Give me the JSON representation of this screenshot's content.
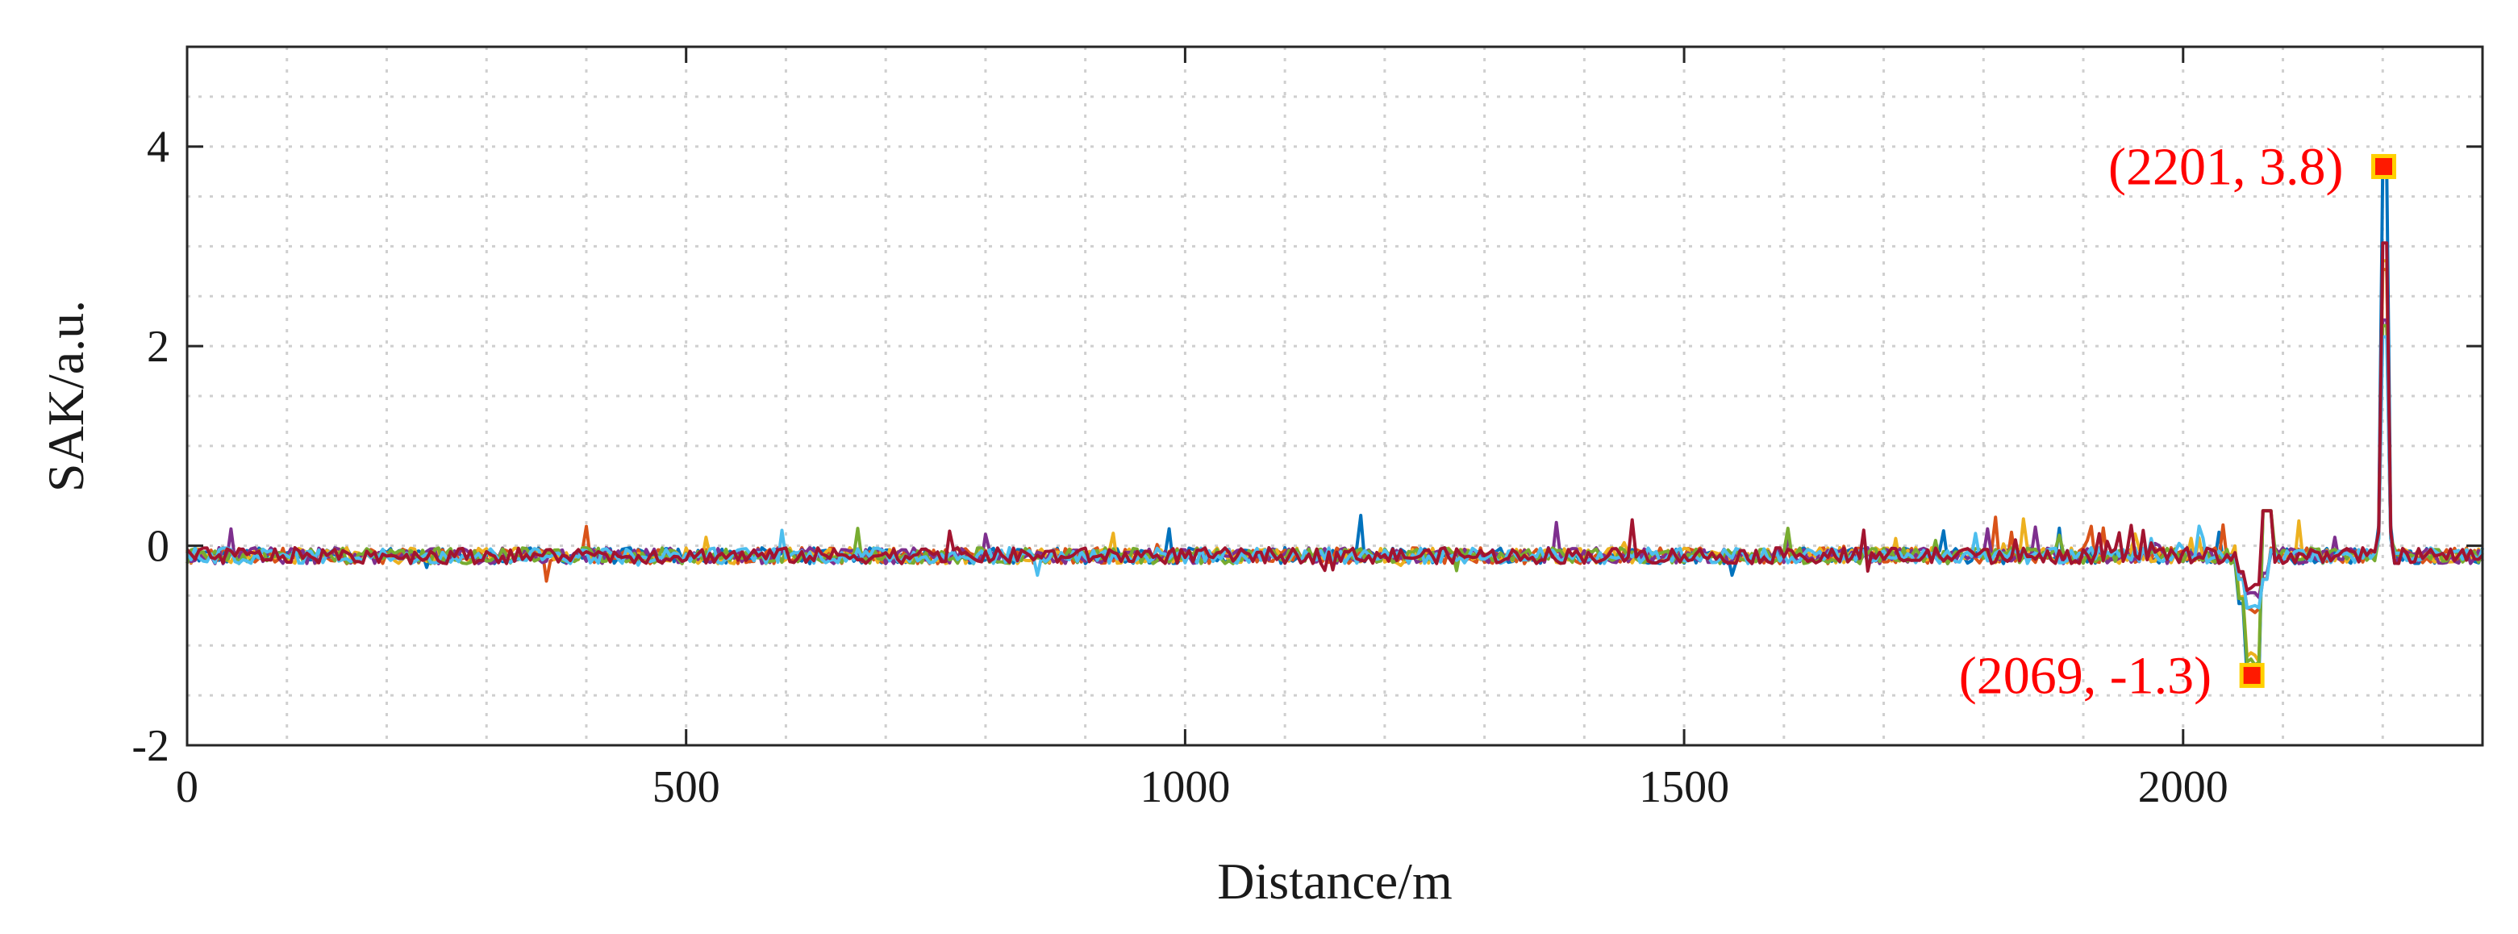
{
  "chart_data": {
    "type": "line",
    "title": "",
    "xlabel": "Distance/m",
    "ylabel": "SAK/a.u.",
    "xlim": [
      0,
      2300
    ],
    "ylim": [
      -2,
      5
    ],
    "xticks": [
      0,
      500,
      1000,
      1500,
      2000
    ],
    "yticks": [
      -2,
      0,
      2,
      4
    ],
    "grid": true,
    "series_colors": [
      "#0072bd",
      "#d95319",
      "#edb120",
      "#7e2f8e",
      "#77ac30",
      "#4dbeee",
      "#a2142f"
    ],
    "series_description_values": {
      "baseline": -0.1,
      "noise_amplitude": 0.08,
      "dip_position": 2069,
      "dip_value": -1.3,
      "peak_position": 2201,
      "peak_value": 3.8
    },
    "annotations": [
      {
        "x": 2201,
        "y": 3.8,
        "label": "(2201, 3.8)",
        "label_side": "left"
      },
      {
        "x": 2069,
        "y": -1.3,
        "label": "(2069, -1.3)",
        "label_side": "left"
      }
    ]
  }
}
